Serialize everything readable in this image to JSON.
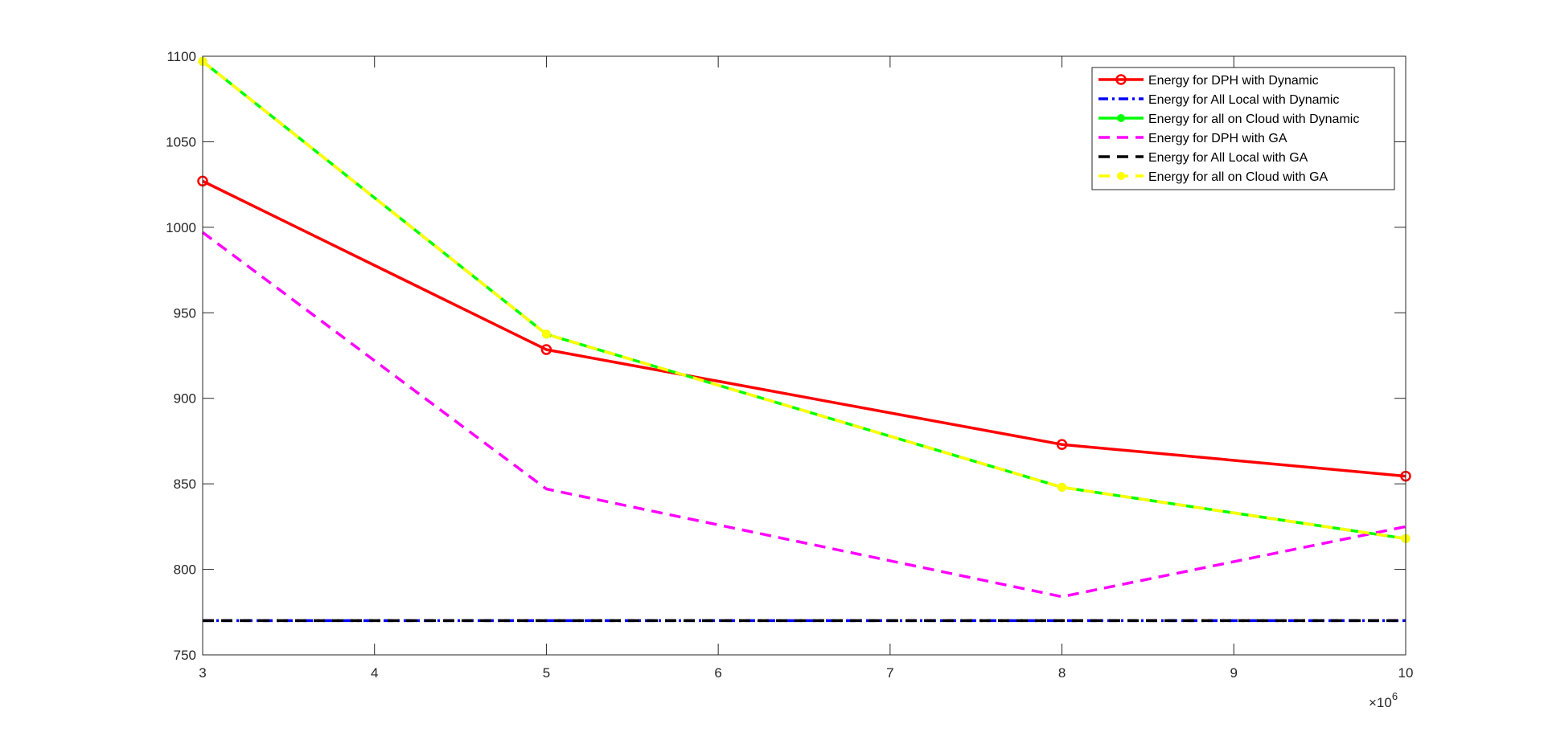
{
  "chart_data": {
    "type": "line",
    "title": "",
    "xlabel": "",
    "ylabel": "",
    "x": [
      3,
      5,
      8,
      10
    ],
    "x_exponent_label": "×10",
    "x_exponent_power": "6",
    "xlim": [
      3,
      10
    ],
    "ylim": [
      750,
      1100
    ],
    "xticks": [
      "3",
      "4",
      "5",
      "6",
      "7",
      "8",
      "9",
      "10"
    ],
    "yticks": [
      "750",
      "800",
      "850",
      "900",
      "950",
      "1000",
      "1050",
      "1100"
    ],
    "grid": false,
    "legend_position": "top-right",
    "series": [
      {
        "name": "Energy for DPH with Dynamic",
        "values": [
          1027,
          928.5,
          873,
          854.5
        ],
        "color": "#ff0000",
        "style": "solid",
        "marker": "circle-open"
      },
      {
        "name": "Energy for All Local with Dynamic",
        "values": [
          770,
          770,
          770,
          770
        ],
        "color": "#0000ff",
        "style": "dashdot",
        "marker": "none"
      },
      {
        "name": "Energy for all on Cloud with Dynamic",
        "values": [
          1097,
          937.5,
          848,
          818
        ],
        "color": "#00ff00",
        "style": "solid",
        "marker": "dot"
      },
      {
        "name": "Energy for DPH with GA",
        "values": [
          997,
          847,
          784,
          825
        ],
        "color": "#ff00ff",
        "style": "dashed",
        "marker": "none"
      },
      {
        "name": "Energy for All Local with GA",
        "values": [
          770,
          770,
          770,
          770
        ],
        "color": "#000000",
        "style": "dashed",
        "marker": "none"
      },
      {
        "name": "Energy for all on Cloud with GA",
        "values": [
          1097,
          937.5,
          848,
          818
        ],
        "color": "#ffff00",
        "style": "dashed",
        "marker": "dot"
      }
    ]
  }
}
